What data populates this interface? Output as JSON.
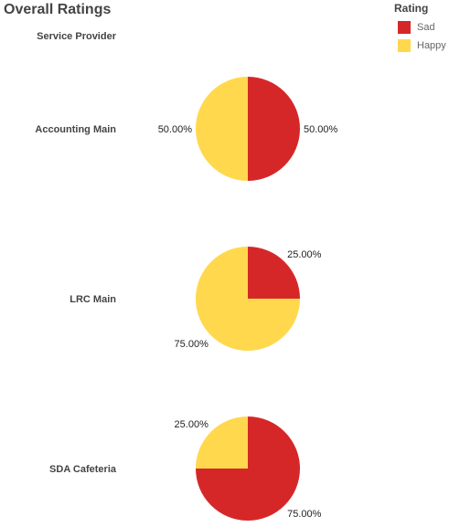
{
  "chart_data": {
    "type": "pie",
    "title": "Overall Ratings",
    "row_header": "Service Provider",
    "legend": {
      "title": "Rating",
      "placement": "top-right",
      "items": [
        {
          "name": "Sad",
          "color": "#d62728"
        },
        {
          "name": "Happy",
          "color": "#ffd84d"
        }
      ]
    },
    "rows": [
      {
        "label": "Accounting Main",
        "slices": [
          {
            "name": "Sad",
            "value": 50,
            "label": "50.00%"
          },
          {
            "name": "Happy",
            "value": 50,
            "label": "50.00%"
          }
        ]
      },
      {
        "label": "LRC Main",
        "slices": [
          {
            "name": "Sad",
            "value": 25,
            "label": "25.00%"
          },
          {
            "name": "Happy",
            "value": 75,
            "label": "75.00%"
          }
        ]
      },
      {
        "label": "SDA Cafeteria",
        "slices": [
          {
            "name": "Sad",
            "value": 75,
            "label": "75.00%"
          },
          {
            "name": "Happy",
            "value": 25,
            "label": "25.00%"
          }
        ]
      }
    ]
  }
}
